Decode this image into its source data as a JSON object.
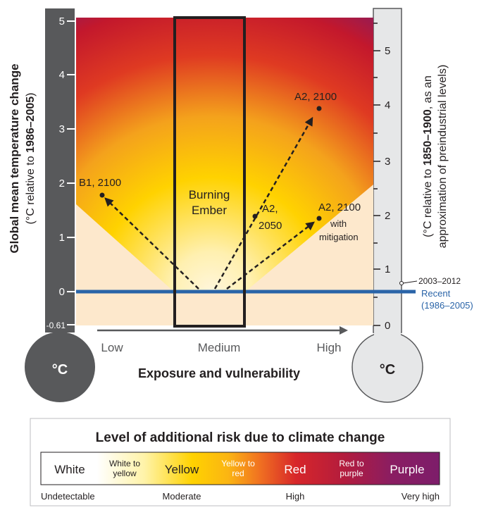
{
  "left_axis": {
    "title": "Global mean temperature change",
    "subtitle_pre": "(°C relative to ",
    "subtitle_bold": "1986–2005",
    "subtitle_post": ")",
    "ticks": [
      "5",
      "4",
      "3",
      "2",
      "1",
      "0",
      "-0.61"
    ],
    "bulb_label": "°C"
  },
  "right_axis": {
    "title_pre": "(°C relative to ",
    "title_bold": "1850–1900",
    "title_post": ", as an",
    "title_line2": "approximation of preindustrial levels)",
    "ticks": [
      "5",
      "4",
      "3",
      "2",
      "1",
      "0"
    ],
    "bulb_label": "°C",
    "callout_period": "2003–2012",
    "recent_label": "Recent",
    "recent_period": "(1986–2005)"
  },
  "x_axis": {
    "title": "Exposure and vulnerability",
    "ticks": [
      "Low",
      "Medium",
      "High"
    ]
  },
  "ember": {
    "label_line1": "Burning",
    "label_line2": "Ember"
  },
  "scenarios": [
    {
      "line1": "B1, 2100"
    },
    {
      "line1": "A2, 2100"
    },
    {
      "line1": "A2,",
      "line2": "2050"
    },
    {
      "line1": "A2, 2100",
      "line2": "with",
      "line3": "mitigation"
    }
  ],
  "legend": {
    "title": "Level of additional risk due to climate change",
    "levels": [
      {
        "label": "White"
      },
      {
        "label1": "White to",
        "label2": "yellow"
      },
      {
        "label": "Yellow"
      },
      {
        "label1": "Yellow to",
        "label2": "red"
      },
      {
        "label": "Red"
      },
      {
        "label1": "Red to",
        "label2": "purple"
      },
      {
        "label": "Purple"
      }
    ],
    "scale": [
      "Undetectable",
      "Moderate",
      "High",
      "Very high"
    ]
  },
  "colors": {
    "recent_line": "#2a64a8",
    "thermometer_dark": "#58595b",
    "thermometer_light": "#e6e7e8",
    "risk_yellow": "#ffd200",
    "risk_red": "#d7262a",
    "risk_purple": "#7d1d6a",
    "low_risk_cream": "#fde8cc"
  }
}
